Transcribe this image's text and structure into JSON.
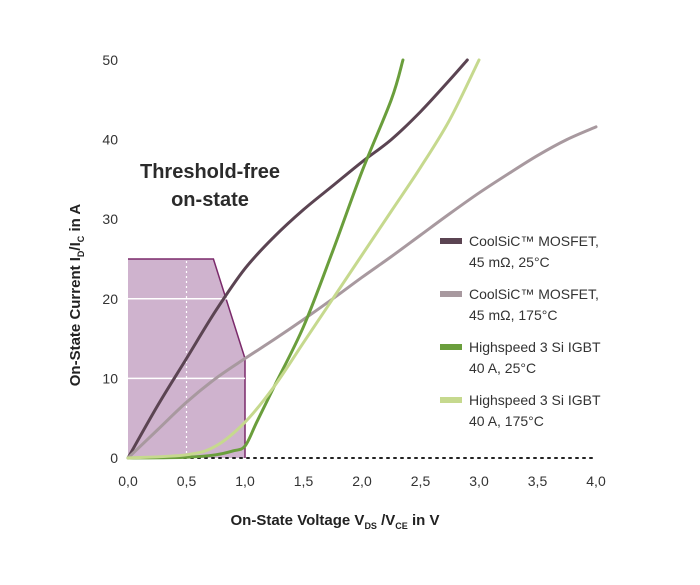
{
  "chart_data": {
    "type": "line",
    "title": "",
    "annotation": [
      "Threshold-free",
      "on-state"
    ],
    "xlabel": {
      "main": "On-State Voltage V",
      "sub1": "DS",
      "mid": " /V",
      "sub2": "CE",
      "tail": " in V"
    },
    "ylabel": {
      "main": "On-State Current I",
      "sub1": "D",
      "mid": "/I",
      "sub2": "C",
      "tail": " in A"
    },
    "xlim": [
      0,
      4
    ],
    "ylim": [
      0,
      50
    ],
    "x_ticks": [
      "0,0",
      "0,5",
      "1,0",
      "1,5",
      "2,0",
      "2,5",
      "3,0",
      "3,5",
      "4,0"
    ],
    "y_ticks": [
      "0",
      "10",
      "20",
      "30",
      "40",
      "50"
    ],
    "legend_position": "right",
    "region": {
      "color": "#cfb3ce",
      "edge_color": "#7b2a6b",
      "points": [
        [
          0,
          0
        ],
        [
          0,
          25
        ],
        [
          0.73,
          25
        ],
        [
          1.0,
          12.5
        ],
        [
          1.0,
          0
        ]
      ]
    },
    "series": [
      {
        "name_lines": [
          "CoolSiC™ MOSFET,",
          "45 mΩ, 25°C"
        ],
        "color": "#5b4452",
        "points": [
          [
            0,
            0
          ],
          [
            0.25,
            6.5
          ],
          [
            0.5,
            12.5
          ],
          [
            0.75,
            18.5
          ],
          [
            1.0,
            23.8
          ],
          [
            1.25,
            27.8
          ],
          [
            1.5,
            31.2
          ],
          [
            1.75,
            34.2
          ],
          [
            2.0,
            37.2
          ],
          [
            2.25,
            40.0
          ],
          [
            2.5,
            43.5
          ],
          [
            2.75,
            47.5
          ],
          [
            2.9,
            50
          ]
        ]
      },
      {
        "name_lines": [
          "CoolSiC™ MOSFET,",
          "45 mΩ, 175°C"
        ],
        "color": "#a8999f",
        "points": [
          [
            0,
            0
          ],
          [
            0.25,
            3.5
          ],
          [
            0.5,
            7
          ],
          [
            0.75,
            10
          ],
          [
            1.0,
            12.5
          ],
          [
            1.25,
            14.9
          ],
          [
            1.5,
            17.4
          ],
          [
            1.75,
            20
          ],
          [
            2.0,
            22.7
          ],
          [
            2.25,
            25.3
          ],
          [
            2.5,
            28
          ],
          [
            2.75,
            30.7
          ],
          [
            3.0,
            33.3
          ],
          [
            3.25,
            35.7
          ],
          [
            3.5,
            38
          ],
          [
            3.75,
            40
          ],
          [
            4.0,
            41.6
          ]
        ]
      },
      {
        "name_lines": [
          "Highspeed 3 Si IGBT",
          "40 A, 25°C"
        ],
        "color": "#6a9e3c",
        "points": [
          [
            0,
            0
          ],
          [
            0.5,
            0.1
          ],
          [
            0.75,
            0.4
          ],
          [
            0.9,
            0.9
          ],
          [
            1.0,
            1.5
          ],
          [
            1.1,
            4.5
          ],
          [
            1.25,
            9
          ],
          [
            1.5,
            16.5
          ],
          [
            1.75,
            26
          ],
          [
            2.0,
            36
          ],
          [
            2.25,
            45
          ],
          [
            2.35,
            50
          ]
        ]
      },
      {
        "name_lines": [
          "Highspeed 3 Si IGBT",
          "40 A, 175°C"
        ],
        "color": "#c6d98e",
        "points": [
          [
            0,
            0
          ],
          [
            0.5,
            0.4
          ],
          [
            0.75,
            1.5
          ],
          [
            1.0,
            4.5
          ],
          [
            1.25,
            9
          ],
          [
            1.5,
            14.5
          ],
          [
            1.75,
            20
          ],
          [
            2.0,
            25.5
          ],
          [
            2.25,
            31
          ],
          [
            2.5,
            36.5
          ],
          [
            2.75,
            42.5
          ],
          [
            3.0,
            50
          ]
        ]
      }
    ]
  }
}
